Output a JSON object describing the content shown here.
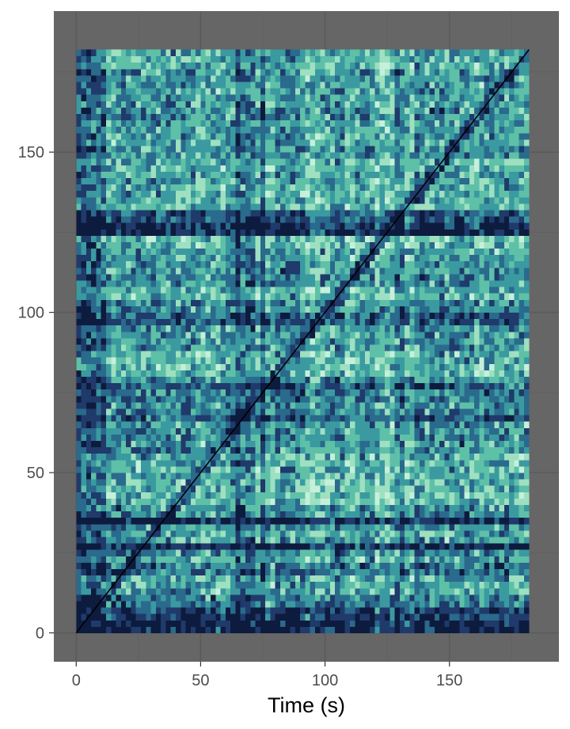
{
  "chart_data": {
    "type": "heatmap",
    "title": "",
    "xlabel": "Time (s)",
    "ylabel": "",
    "xlim": [
      -9,
      194
    ],
    "ylim": [
      -9,
      194
    ],
    "x_ticks": [
      0,
      50,
      100,
      150
    ],
    "y_ticks": [
      0,
      50,
      100,
      150
    ],
    "x_tick_labels": [
      "0",
      "50",
      "100",
      "150"
    ],
    "y_tick_labels": [
      "0",
      "50",
      "100",
      "150"
    ],
    "data_extent": {
      "x": [
        0,
        182
      ],
      "y": [
        0,
        182
      ]
    },
    "grid": true,
    "legend": "none",
    "description_of_matrix": "self-similarity (recurrence) matrix over time; diagonal is maximal similarity",
    "band_rows": [
      0,
      2,
      4,
      6,
      8,
      10,
      20,
      27,
      35,
      68,
      70,
      72,
      74,
      76,
      98,
      125,
      127,
      130
    ],
    "band_cols": [
      0,
      2,
      4,
      6,
      8,
      10,
      65,
      68,
      70,
      75
    ],
    "colors": {
      "panel_background": "#666666",
      "grid_major": "#5a5a5a",
      "grid_minor": "#616161",
      "palette": [
        "#0d1b3e",
        "#1f3a6b",
        "#2a6a8c",
        "#3a9aa0",
        "#5fc0a8",
        "#9ee0c0",
        "#c6f0da"
      ],
      "diagonal": "#000000"
    }
  }
}
